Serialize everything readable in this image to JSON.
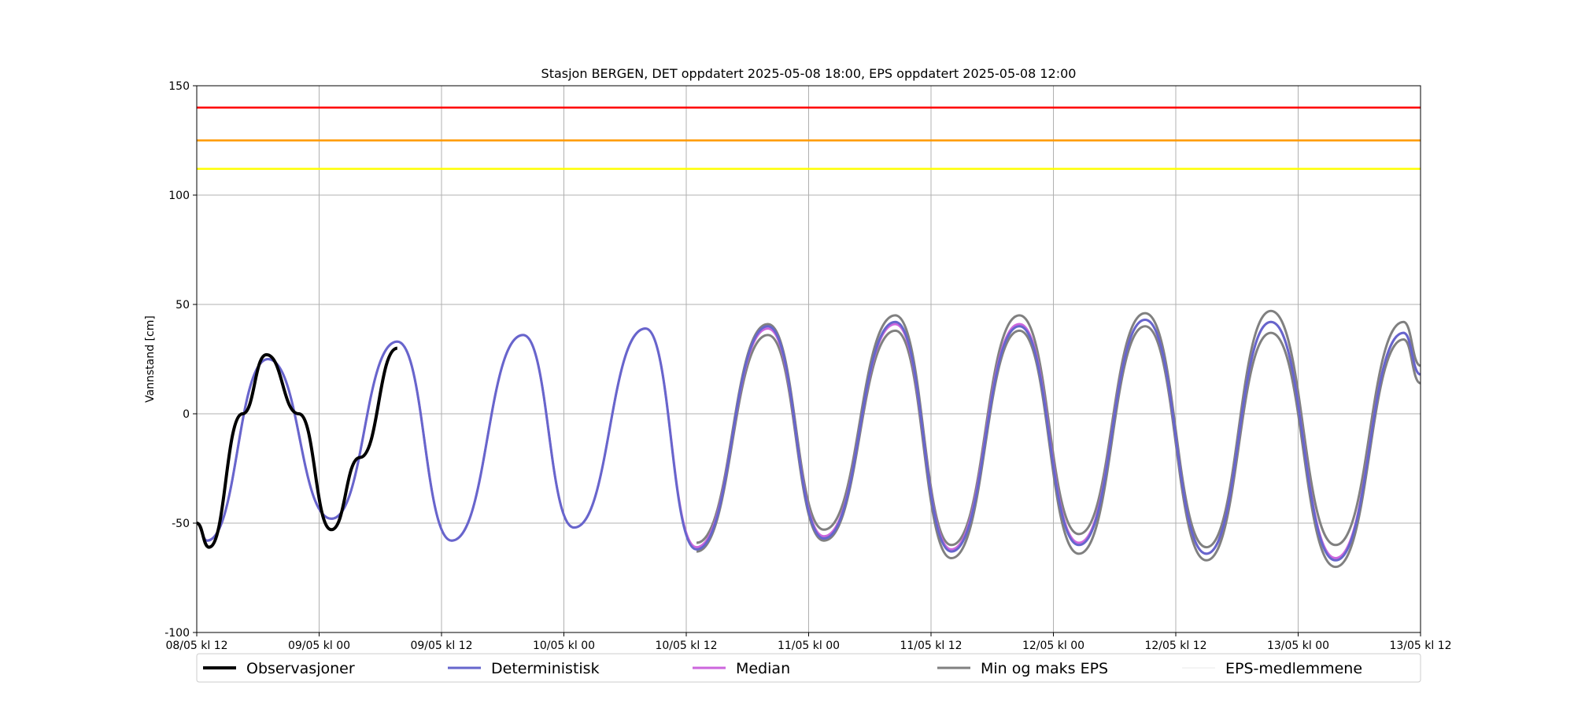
{
  "chart_data": {
    "type": "line",
    "title": "Stasjon BERGEN, DET oppdatert 2025-05-08 18:00, EPS oppdatert 2025-05-08 12:00",
    "xlabel": "",
    "ylabel": "Vannstand [cm]",
    "xlim": [
      "2025-05-08 12:00",
      "2025-05-13 12:00"
    ],
    "ylim": [
      -100,
      150
    ],
    "yticks": [
      -100,
      -50,
      0,
      50,
      100,
      150
    ],
    "xticks": [
      {
        "t": "2025-05-08 12:00",
        "label": "08/05 kl 12"
      },
      {
        "t": "2025-05-09 00:00",
        "label": "09/05 kl 00"
      },
      {
        "t": "2025-05-09 12:00",
        "label": "09/05 kl 12"
      },
      {
        "t": "2025-05-10 00:00",
        "label": "10/05 kl 00"
      },
      {
        "t": "2025-05-10 12:00",
        "label": "10/05 kl 12"
      },
      {
        "t": "2025-05-11 00:00",
        "label": "11/05 kl 00"
      },
      {
        "t": "2025-05-11 12:00",
        "label": "11/05 kl 12"
      },
      {
        "t": "2025-05-12 00:00",
        "label": "12/05 kl 00"
      },
      {
        "t": "2025-05-12 12:00",
        "label": "12/05 kl 12"
      },
      {
        "t": "2025-05-13 00:00",
        "label": "13/05 kl 00"
      },
      {
        "t": "2025-05-13 12:00",
        "label": "13/05 kl 12"
      }
    ],
    "grid": true,
    "legend_position": "bottom",
    "thresholds": [
      {
        "y": 140,
        "color": "#ff0000"
      },
      {
        "y": 125,
        "color": "#ff9900"
      },
      {
        "y": 112,
        "color": "#ffff00"
      }
    ],
    "series": [
      {
        "name": "Observasjoner",
        "color": "#000000",
        "x": [
          "2025-05-08 12:00",
          "2025-05-08 13:12",
          "2025-05-08 16:30",
          "2025-05-08 18:50",
          "2025-05-08 22:00",
          "2025-05-09 01:12",
          "2025-05-09 04:00",
          "2025-05-09 07:40"
        ],
        "y": [
          -50,
          -61,
          0,
          27,
          0,
          -53,
          -20,
          30
        ]
      },
      {
        "name": "Deterministisk",
        "color": "#6666cc",
        "x": [
          "2025-05-08 12:00",
          "2025-05-08 13:00",
          "2025-05-08 19:00",
          "2025-05-09 01:12",
          "2025-05-09 07:40",
          "2025-05-09 13:00",
          "2025-05-09 20:00",
          "2025-05-10 01:00",
          "2025-05-10 08:00",
          "2025-05-10 13:00",
          "2025-05-10 20:00",
          "2025-05-11 01:30",
          "2025-05-11 08:30",
          "2025-05-11 14:00",
          "2025-05-11 20:40",
          "2025-05-12 02:30",
          "2025-05-12 09:00",
          "2025-05-12 15:00",
          "2025-05-12 21:20",
          "2025-05-13 03:40",
          "2025-05-13 10:20",
          "2025-05-13 12:00"
        ],
        "y": [
          -50,
          -58,
          25,
          -48,
          33,
          -58,
          36,
          -52,
          39,
          -62,
          40,
          -57,
          42,
          -63,
          40,
          -60,
          43,
          -64,
          42,
          -67,
          37,
          18
        ]
      },
      {
        "name": "Median",
        "color": "#cc66dd",
        "x": [
          "2025-05-08 12:00",
          "2025-05-08 13:00",
          "2025-05-08 19:00",
          "2025-05-09 01:12",
          "2025-05-09 07:40",
          "2025-05-09 13:00",
          "2025-05-09 20:00",
          "2025-05-10 01:00",
          "2025-05-10 08:00",
          "2025-05-10 13:00",
          "2025-05-10 20:00",
          "2025-05-11 01:30",
          "2025-05-11 08:30",
          "2025-05-11 14:00",
          "2025-05-11 20:40",
          "2025-05-12 02:30",
          "2025-05-12 09:00",
          "2025-05-12 15:00",
          "2025-05-12 21:20",
          "2025-05-13 03:40",
          "2025-05-13 10:20",
          "2025-05-13 12:00"
        ],
        "y": [
          -50,
          -58,
          25,
          -48,
          33,
          -58,
          36,
          -52,
          39,
          -61,
          39,
          -56,
          41,
          -62,
          41,
          -59,
          43,
          -64,
          42,
          -66,
          37,
          18
        ]
      },
      {
        "name": "Min og maks EPS",
        "color": "#808080",
        "x": [
          "2025-05-10 13:00",
          "2025-05-10 20:00",
          "2025-05-11 01:30",
          "2025-05-11 08:30",
          "2025-05-11 14:00",
          "2025-05-11 20:40",
          "2025-05-12 02:30",
          "2025-05-12 09:00",
          "2025-05-12 15:00",
          "2025-05-12 21:20",
          "2025-05-13 03:40",
          "2025-05-13 10:20",
          "2025-05-13 12:00"
        ],
        "y_min": [
          -63,
          36,
          -58,
          38,
          -66,
          38,
          -64,
          40,
          -67,
          37,
          -70,
          34,
          14
        ],
        "y_max": [
          -59,
          41,
          -53,
          45,
          -60,
          45,
          -55,
          46,
          -61,
          47,
          -60,
          42,
          22
        ]
      },
      {
        "name": "EPS-medlemmene",
        "color": "#e8e8e8"
      }
    ]
  }
}
